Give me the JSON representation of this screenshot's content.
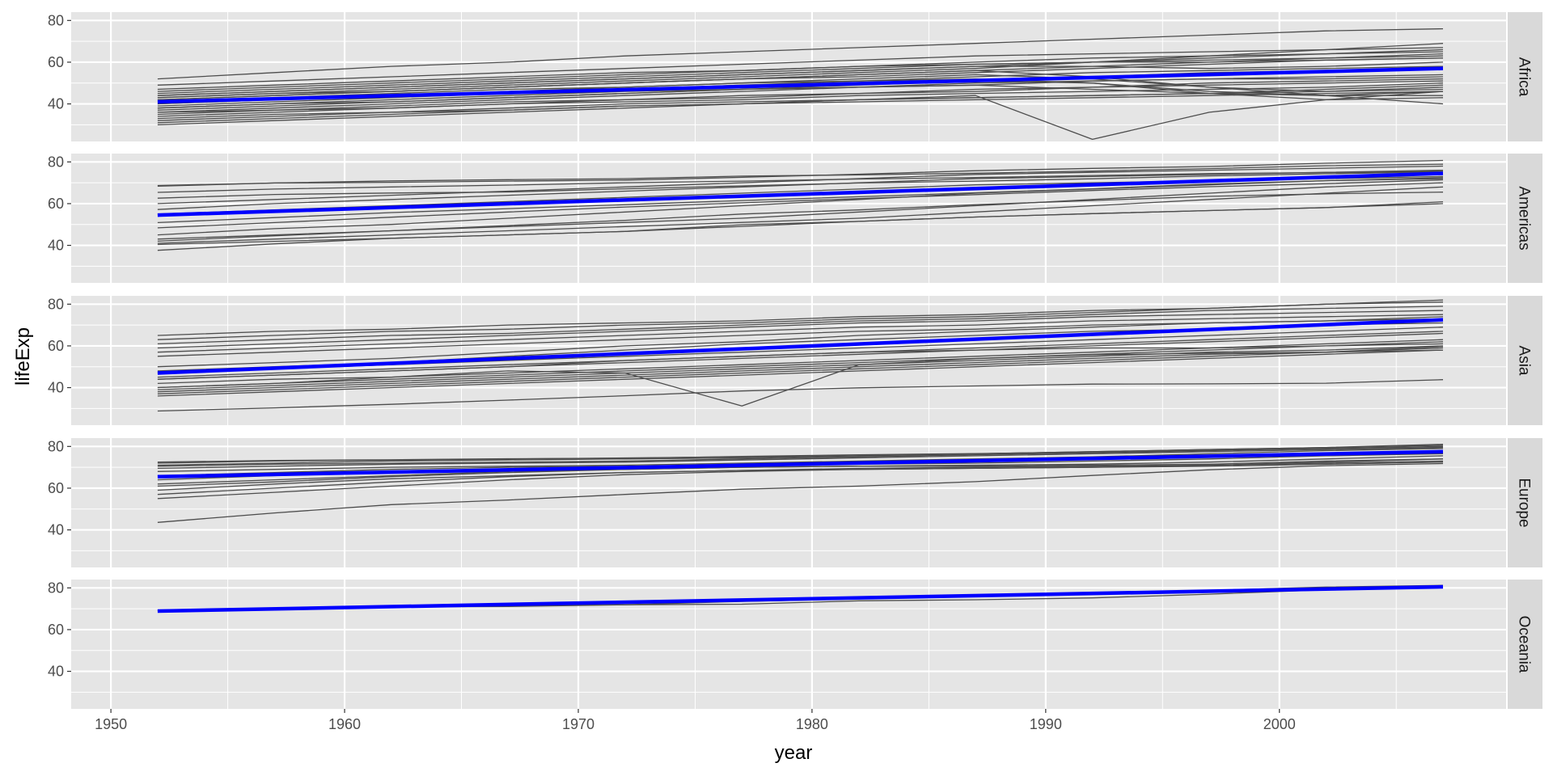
{
  "chart_data": {
    "type": "line",
    "xlabel": "year",
    "ylabel": "lifeExp",
    "xlim": [
      1948.3,
      2009.7
    ],
    "ylim": [
      22,
      84
    ],
    "x_ticks": [
      1950,
      1960,
      1970,
      1980,
      1990,
      2000
    ],
    "y_ticks": [
      40,
      60,
      80
    ],
    "grid": true,
    "facets": [
      {
        "name": "Africa",
        "trend": {
          "x": [
            1952,
            2007
          ],
          "y": [
            41,
            57
          ]
        },
        "countries": [
          [
            52,
            55,
            58,
            60,
            63,
            65,
            67,
            69,
            71,
            73,
            75,
            76
          ],
          [
            49,
            51,
            53,
            55,
            57,
            59,
            61,
            63,
            64,
            65,
            66,
            67
          ],
          [
            47,
            49,
            51,
            53,
            55,
            56,
            58,
            59,
            60,
            61,
            62,
            63
          ],
          [
            46,
            48,
            50,
            52,
            54,
            56,
            58,
            60,
            62,
            63,
            64,
            65
          ],
          [
            45,
            47,
            49,
            51,
            53,
            55,
            57,
            59,
            60,
            60,
            61,
            62
          ],
          [
            44,
            46,
            48,
            50,
            52,
            54,
            56,
            58,
            58,
            57,
            58,
            60
          ],
          [
            43,
            45,
            47,
            49,
            51,
            53,
            55,
            57,
            60,
            63,
            66,
            69
          ],
          [
            43,
            45,
            46,
            48,
            50,
            52,
            54,
            56,
            58,
            60,
            62,
            64
          ],
          [
            42,
            44,
            46,
            48,
            50,
            52,
            53,
            55,
            57,
            59,
            61,
            62
          ],
          [
            41,
            43,
            45,
            47,
            48,
            50,
            51,
            53,
            55,
            56,
            57,
            58
          ],
          [
            40,
            42,
            44,
            46,
            48,
            50,
            52,
            54,
            52,
            48,
            46,
            48
          ],
          [
            40,
            42,
            44,
            46,
            47,
            49,
            50,
            51,
            50,
            46,
            44,
            44
          ],
          [
            39,
            41,
            43,
            45,
            47,
            49,
            51,
            52,
            50,
            45,
            42,
            43
          ],
          [
            38,
            40,
            42,
            44,
            46,
            47,
            48,
            49,
            47,
            45,
            44,
            46
          ],
          [
            38,
            40,
            41,
            43,
            45,
            47,
            49,
            51,
            53,
            55,
            56,
            57
          ],
          [
            37,
            39,
            41,
            43,
            45,
            47,
            48,
            49,
            51,
            52,
            53,
            54
          ],
          [
            36,
            38,
            40,
            42,
            44,
            46,
            48,
            50,
            51,
            52,
            52,
            53
          ],
          [
            36,
            37,
            39,
            41,
            42,
            44,
            45,
            47,
            48,
            49,
            50,
            51
          ],
          [
            35,
            37,
            38,
            40,
            42,
            43,
            45,
            46,
            48,
            50,
            51,
            52
          ],
          [
            34,
            36,
            38,
            40,
            41,
            42,
            44,
            45,
            46,
            47,
            48,
            50
          ],
          [
            33,
            35,
            36,
            38,
            40,
            41,
            42,
            43,
            44,
            45,
            46,
            47
          ],
          [
            32,
            34,
            36,
            37,
            39,
            40,
            42,
            43,
            44,
            45,
            47,
            49
          ],
          [
            31,
            33,
            35,
            37,
            39,
            40,
            41,
            42,
            43,
            44,
            45,
            46
          ],
          [
            30,
            32,
            34,
            36,
            38,
            40,
            42,
            44,
            23,
            36,
            42,
            46
          ],
          [
            42,
            44,
            46,
            48,
            50,
            52,
            54,
            56,
            53,
            48,
            44,
            40
          ],
          [
            44,
            46,
            48,
            50,
            52,
            54,
            56,
            58,
            60,
            62,
            64,
            66
          ]
        ]
      },
      {
        "name": "Americas",
        "trend": {
          "x": [
            1952,
            2007
          ],
          "y": [
            54.5,
            74.5
          ]
        },
        "countries": [
          [
            68.7,
            69.9,
            70.9,
            71.5,
            72.0,
            73.2,
            73.8,
            74.6,
            75.6,
            76.8,
            78.2,
            78.9
          ],
          [
            68.4,
            69.9,
            70.2,
            70.8,
            71.3,
            72.6,
            74.1,
            75.8,
            76.9,
            77.8,
            79.4,
            80.7
          ],
          [
            65.4,
            67.0,
            68.0,
            68.9,
            70.0,
            70.8,
            71.8,
            72.5,
            73.5,
            74.4,
            74.9,
            75.5
          ],
          [
            62.6,
            64.4,
            65.1,
            65.6,
            67.1,
            68.5,
            69.9,
            70.8,
            71.9,
            73.3,
            74.3,
            75.3
          ],
          [
            60.0,
            62.0,
            64.0,
            66.0,
            68.0,
            70.0,
            72.0,
            74.0,
            75.0,
            76.0,
            77.0,
            78.0
          ],
          [
            57.2,
            60.0,
            62.0,
            64.0,
            66.0,
            68.0,
            70.0,
            72.0,
            73.0,
            74.0,
            75.0,
            76.0
          ],
          [
            55.0,
            57.0,
            59.0,
            61.0,
            63.0,
            65.0,
            67.0,
            69.0,
            70.0,
            71.0,
            72.0,
            73.0
          ],
          [
            50.9,
            53.3,
            55.7,
            57.6,
            59.5,
            61.5,
            63.3,
            65.2,
            67.1,
            69.4,
            71.0,
            72.4
          ],
          [
            48.4,
            50.9,
            53.5,
            56.0,
            58.4,
            60.4,
            62.4,
            64.3,
            66.3,
            68.1,
            69.6,
            71.4
          ],
          [
            45.0,
            48.0,
            50.0,
            53.0,
            56.0,
            59.0,
            62.0,
            65.0,
            67.0,
            69.0,
            71.0,
            72.0
          ],
          [
            43.0,
            45.0,
            47.0,
            49.0,
            51.0,
            53.0,
            56.0,
            59.0,
            62.0,
            65.0,
            68.0,
            70.0
          ],
          [
            41.0,
            43.0,
            45.0,
            47.0,
            49.0,
            51.0,
            53.0,
            56.0,
            59.0,
            62.0,
            65.0,
            68.0
          ],
          [
            40.4,
            41.9,
            43.4,
            45.0,
            46.7,
            49.9,
            51.5,
            53.6,
            55.2,
            56.7,
            58.1,
            60.9
          ],
          [
            37.6,
            40.7,
            43.4,
            45.0,
            46.7,
            49.1,
            51.5,
            53.6,
            55.2,
            56.7,
            58.1,
            60.0
          ],
          [
            42.0,
            44.6,
            47.0,
            49.5,
            52.0,
            55.0,
            57.0,
            59.5,
            61.5,
            63.5,
            64.7,
            65.5
          ]
        ]
      },
      {
        "name": "Asia",
        "trend": {
          "x": [
            1952,
            2007
          ],
          "y": [
            47,
            72.5
          ]
        },
        "countries": [
          [
            65.0,
            67.0,
            68.0,
            70.0,
            71.0,
            72.0,
            74.0,
            75.0,
            77.0,
            78.0,
            80.0,
            82.0
          ],
          [
            63.0,
            65.0,
            67.0,
            68.0,
            70.0,
            71.0,
            73.0,
            74.0,
            76.0,
            78.0,
            80.0,
            81.0
          ],
          [
            61.0,
            63.0,
            65.0,
            66.0,
            68.0,
            70.0,
            72.0,
            73.0,
            75.0,
            77.0,
            78.0,
            79.0
          ],
          [
            59.0,
            61.0,
            63.0,
            65.0,
            67.0,
            69.0,
            71.0,
            72.0,
            74.0,
            75.0,
            76.0,
            77.0
          ],
          [
            57.0,
            59.0,
            61.0,
            63.0,
            65.0,
            67.0,
            69.0,
            70.0,
            72.0,
            73.0,
            74.0,
            75.0
          ],
          [
            55.0,
            57.0,
            59.0,
            61.0,
            63.0,
            65.0,
            67.0,
            68.0,
            70.0,
            71.0,
            72.0,
            73.0
          ],
          [
            50.0,
            52.0,
            54.0,
            57.0,
            60.0,
            62.0,
            65.0,
            67.0,
            69.0,
            71.0,
            72.0,
            74.0
          ],
          [
            48.0,
            50.0,
            52.0,
            55.0,
            58.0,
            61.0,
            63.0,
            65.0,
            67.0,
            68.0,
            70.0,
            71.0
          ],
          [
            47.0,
            49.0,
            51.0,
            53.0,
            55.0,
            57.0,
            59.0,
            61.0,
            63.0,
            65.0,
            67.0,
            69.0
          ],
          [
            45.0,
            47.0,
            49.0,
            51.0,
            53.0,
            55.0,
            57.0,
            59.0,
            61.0,
            63.0,
            65.0,
            67.0
          ],
          [
            44.0,
            46.0,
            48.0,
            50.0,
            52.0,
            54.0,
            56.0,
            58.0,
            60.0,
            62.0,
            64.0,
            66.0
          ],
          [
            42.0,
            44.0,
            45.0,
            47.0,
            49.0,
            51.0,
            53.0,
            55.0,
            57.0,
            59.0,
            61.0,
            63.0
          ],
          [
            40.0,
            42.0,
            44.0,
            46.0,
            48.0,
            50.0,
            52.0,
            54.0,
            56.0,
            58.0,
            60.0,
            62.0
          ],
          [
            39.0,
            41.0,
            43.0,
            45.0,
            47.0,
            49.0,
            51.0,
            53.0,
            55.0,
            57.0,
            58.0,
            60.0
          ],
          [
            37.0,
            39.0,
            41.0,
            43.0,
            45.0,
            47.0,
            49.0,
            51.0,
            53.0,
            55.0,
            57.0,
            59.0
          ],
          [
            36.0,
            38.0,
            40.0,
            42.0,
            44.0,
            46.0,
            48.0,
            50.0,
            52.0,
            54.0,
            56.0,
            58.0
          ],
          [
            40.0,
            42.0,
            45.0,
            48.0,
            47.0,
            31.2,
            50.9,
            53.9,
            55.8,
            56.5,
            57.0,
            59.7
          ],
          [
            28.8,
            30.3,
            32.0,
            34.0,
            36.1,
            38.4,
            39.9,
            40.8,
            41.7,
            41.8,
            42.1,
            43.8
          ],
          [
            44.0,
            46.0,
            48.0,
            50.0,
            53.0,
            55.0,
            57.0,
            58.0,
            59.0,
            59.0,
            60.0,
            61.0
          ],
          [
            38.0,
            40.0,
            42.0,
            44.0,
            46.0,
            48.0,
            50.0,
            52.0,
            54.0,
            56.0,
            57.0,
            58.0
          ]
        ]
      },
      {
        "name": "Europe",
        "trend": {
          "x": [
            1952,
            2007
          ],
          "y": [
            65.5,
            77.5
          ]
        },
        "countries": [
          [
            72.5,
            73.3,
            73.6,
            74.1,
            74.3,
            75.2,
            76.0,
            76.6,
            77.3,
            78.3,
            79.1,
            79.8
          ],
          [
            72.0,
            73.0,
            73.5,
            74.0,
            74.5,
            75.0,
            75.5,
            76.5,
            77.5,
            78.5,
            79.5,
            80.5
          ],
          [
            71.0,
            72.0,
            73.0,
            73.5,
            74.0,
            74.5,
            75.5,
            76.5,
            77.5,
            78.5,
            79.5,
            81.0
          ],
          [
            70.5,
            71.5,
            72.0,
            72.5,
            73.0,
            74.0,
            75.0,
            76.0,
            77.0,
            78.0,
            79.0,
            80.0
          ],
          [
            69.5,
            70.5,
            71.5,
            72.0,
            72.5,
            73.5,
            74.5,
            75.5,
            76.5,
            77.5,
            78.5,
            79.5
          ],
          [
            68.0,
            69.0,
            70.0,
            70.5,
            71.0,
            72.0,
            73.0,
            74.0,
            75.0,
            76.5,
            78.0,
            79.0
          ],
          [
            66.0,
            67.5,
            69.0,
            70.0,
            70.5,
            71.0,
            72.0,
            73.0,
            74.0,
            75.0,
            76.0,
            77.0
          ],
          [
            64.0,
            66.0,
            68.0,
            69.0,
            70.0,
            71.0,
            71.5,
            72.0,
            73.0,
            74.0,
            75.5,
            76.5
          ],
          [
            62.0,
            64.0,
            66.0,
            68.0,
            69.0,
            70.0,
            70.5,
            71.0,
            71.5,
            72.5,
            74.0,
            75.5
          ],
          [
            61.0,
            63.0,
            65.5,
            67.5,
            69.0,
            70.0,
            70.5,
            70.5,
            71.0,
            71.5,
            73.0,
            74.0
          ],
          [
            59.0,
            62.0,
            64.5,
            66.0,
            67.5,
            68.5,
            69.5,
            70.0,
            70.5,
            71.0,
            72.5,
            74.0
          ],
          [
            57.0,
            60.0,
            63.0,
            65.5,
            67.5,
            68.5,
            69.0,
            69.5,
            70.0,
            71.0,
            72.0,
            73.0
          ],
          [
            55.0,
            58.0,
            61.0,
            64.0,
            66.5,
            68.0,
            69.0,
            69.5,
            70.0,
            70.5,
            71.5,
            72.5
          ],
          [
            43.6,
            48.1,
            52.1,
            54.3,
            57.0,
            59.5,
            61.0,
            63.1,
            66.1,
            68.8,
            70.8,
            71.8
          ]
        ]
      },
      {
        "name": "Oceania",
        "trend": {
          "x": [
            1952,
            2007
          ],
          "y": [
            68.9,
            80.5
          ]
        },
        "countries": [
          [
            69.1,
            70.3,
            70.9,
            71.1,
            71.9,
            73.5,
            74.7,
            76.3,
            77.6,
            78.8,
            80.4,
            81.2
          ],
          [
            69.4,
            70.3,
            71.2,
            71.5,
            71.9,
            72.2,
            73.8,
            74.3,
            75.2,
            77.0,
            79.1,
            80.2
          ]
        ]
      }
    ],
    "facet_labels": [
      "Africa",
      "Americas",
      "Asia",
      "Europe",
      "Oceania"
    ],
    "colors": {
      "panel_bg": "#e5e5e5",
      "strip_bg": "#d9d9d9",
      "country_line": "#4d4d4d",
      "trend_line": "#0000ff",
      "grid": "#ffffff"
    }
  }
}
